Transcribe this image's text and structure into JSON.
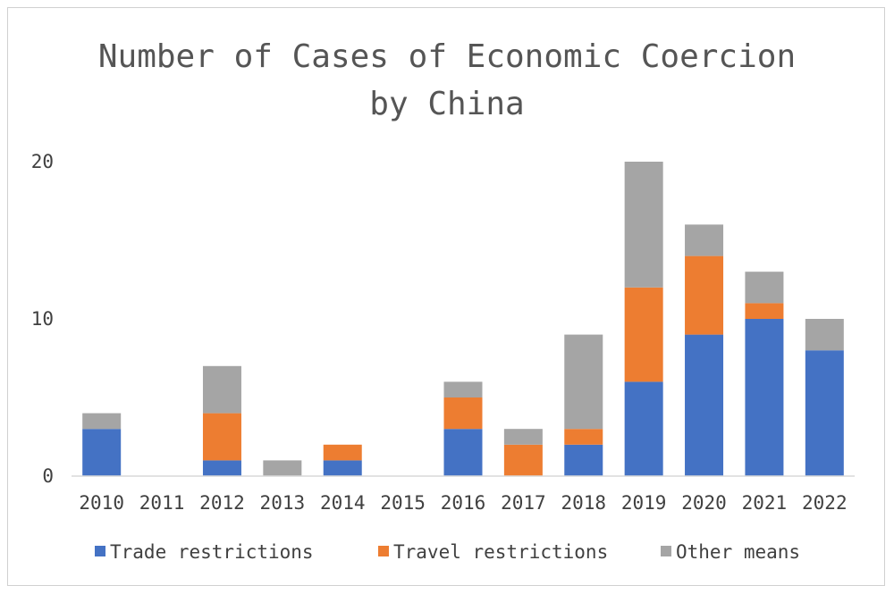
{
  "chart_data": {
    "type": "bar",
    "stacked": true,
    "title_lines": [
      "Number of Cases of Economic Coercion",
      "by China"
    ],
    "categories": [
      "2010",
      "2011",
      "2012",
      "2013",
      "2014",
      "2015",
      "2016",
      "2017",
      "2018",
      "2019",
      "2020",
      "2021",
      "2022"
    ],
    "ylim": [
      0,
      20
    ],
    "yticks": [
      0,
      10,
      20
    ],
    "grid": false,
    "legend_position": "bottom",
    "series": [
      {
        "name": "Trade restrictions",
        "color": "#4472c4",
        "values": [
          3,
          0,
          1,
          0,
          1,
          0,
          3,
          0,
          2,
          6,
          9,
          10,
          8
        ]
      },
      {
        "name": "Travel restrictions",
        "color": "#ed7d31",
        "values": [
          0,
          0,
          3,
          0,
          1,
          0,
          2,
          2,
          1,
          6,
          5,
          1,
          0
        ]
      },
      {
        "name": "Other means",
        "color": "#a5a5a5",
        "values": [
          1,
          0,
          3,
          1,
          0,
          0,
          1,
          1,
          6,
          8,
          2,
          2,
          2
        ]
      }
    ]
  }
}
